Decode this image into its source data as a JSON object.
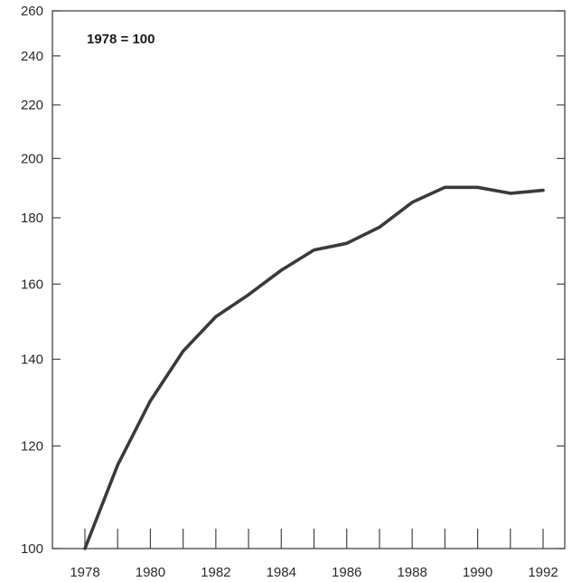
{
  "chart_data": {
    "type": "line",
    "title": "",
    "xlabel": "",
    "ylabel": "",
    "annotation": "1978 = 100",
    "y_scale": "log",
    "ylim": [
      100,
      260
    ],
    "xlim": [
      1978,
      1992
    ],
    "y_ticks": [
      100,
      120,
      140,
      160,
      180,
      200,
      220,
      240,
      260
    ],
    "x_tick_labels": [
      "1978",
      "1980",
      "1982",
      "1984",
      "1986",
      "1988",
      "1990",
      "1992"
    ],
    "grid": false,
    "series": [
      {
        "x": [
          1978,
          1979,
          1980,
          1981,
          1982,
          1983,
          1984,
          1985,
          1986,
          1987,
          1988,
          1989,
          1990,
          1991,
          1992
        ],
        "values": [
          100,
          116,
          130,
          142,
          151,
          157,
          164,
          170,
          172,
          177,
          185,
          190,
          190,
          188,
          189
        ]
      }
    ]
  }
}
